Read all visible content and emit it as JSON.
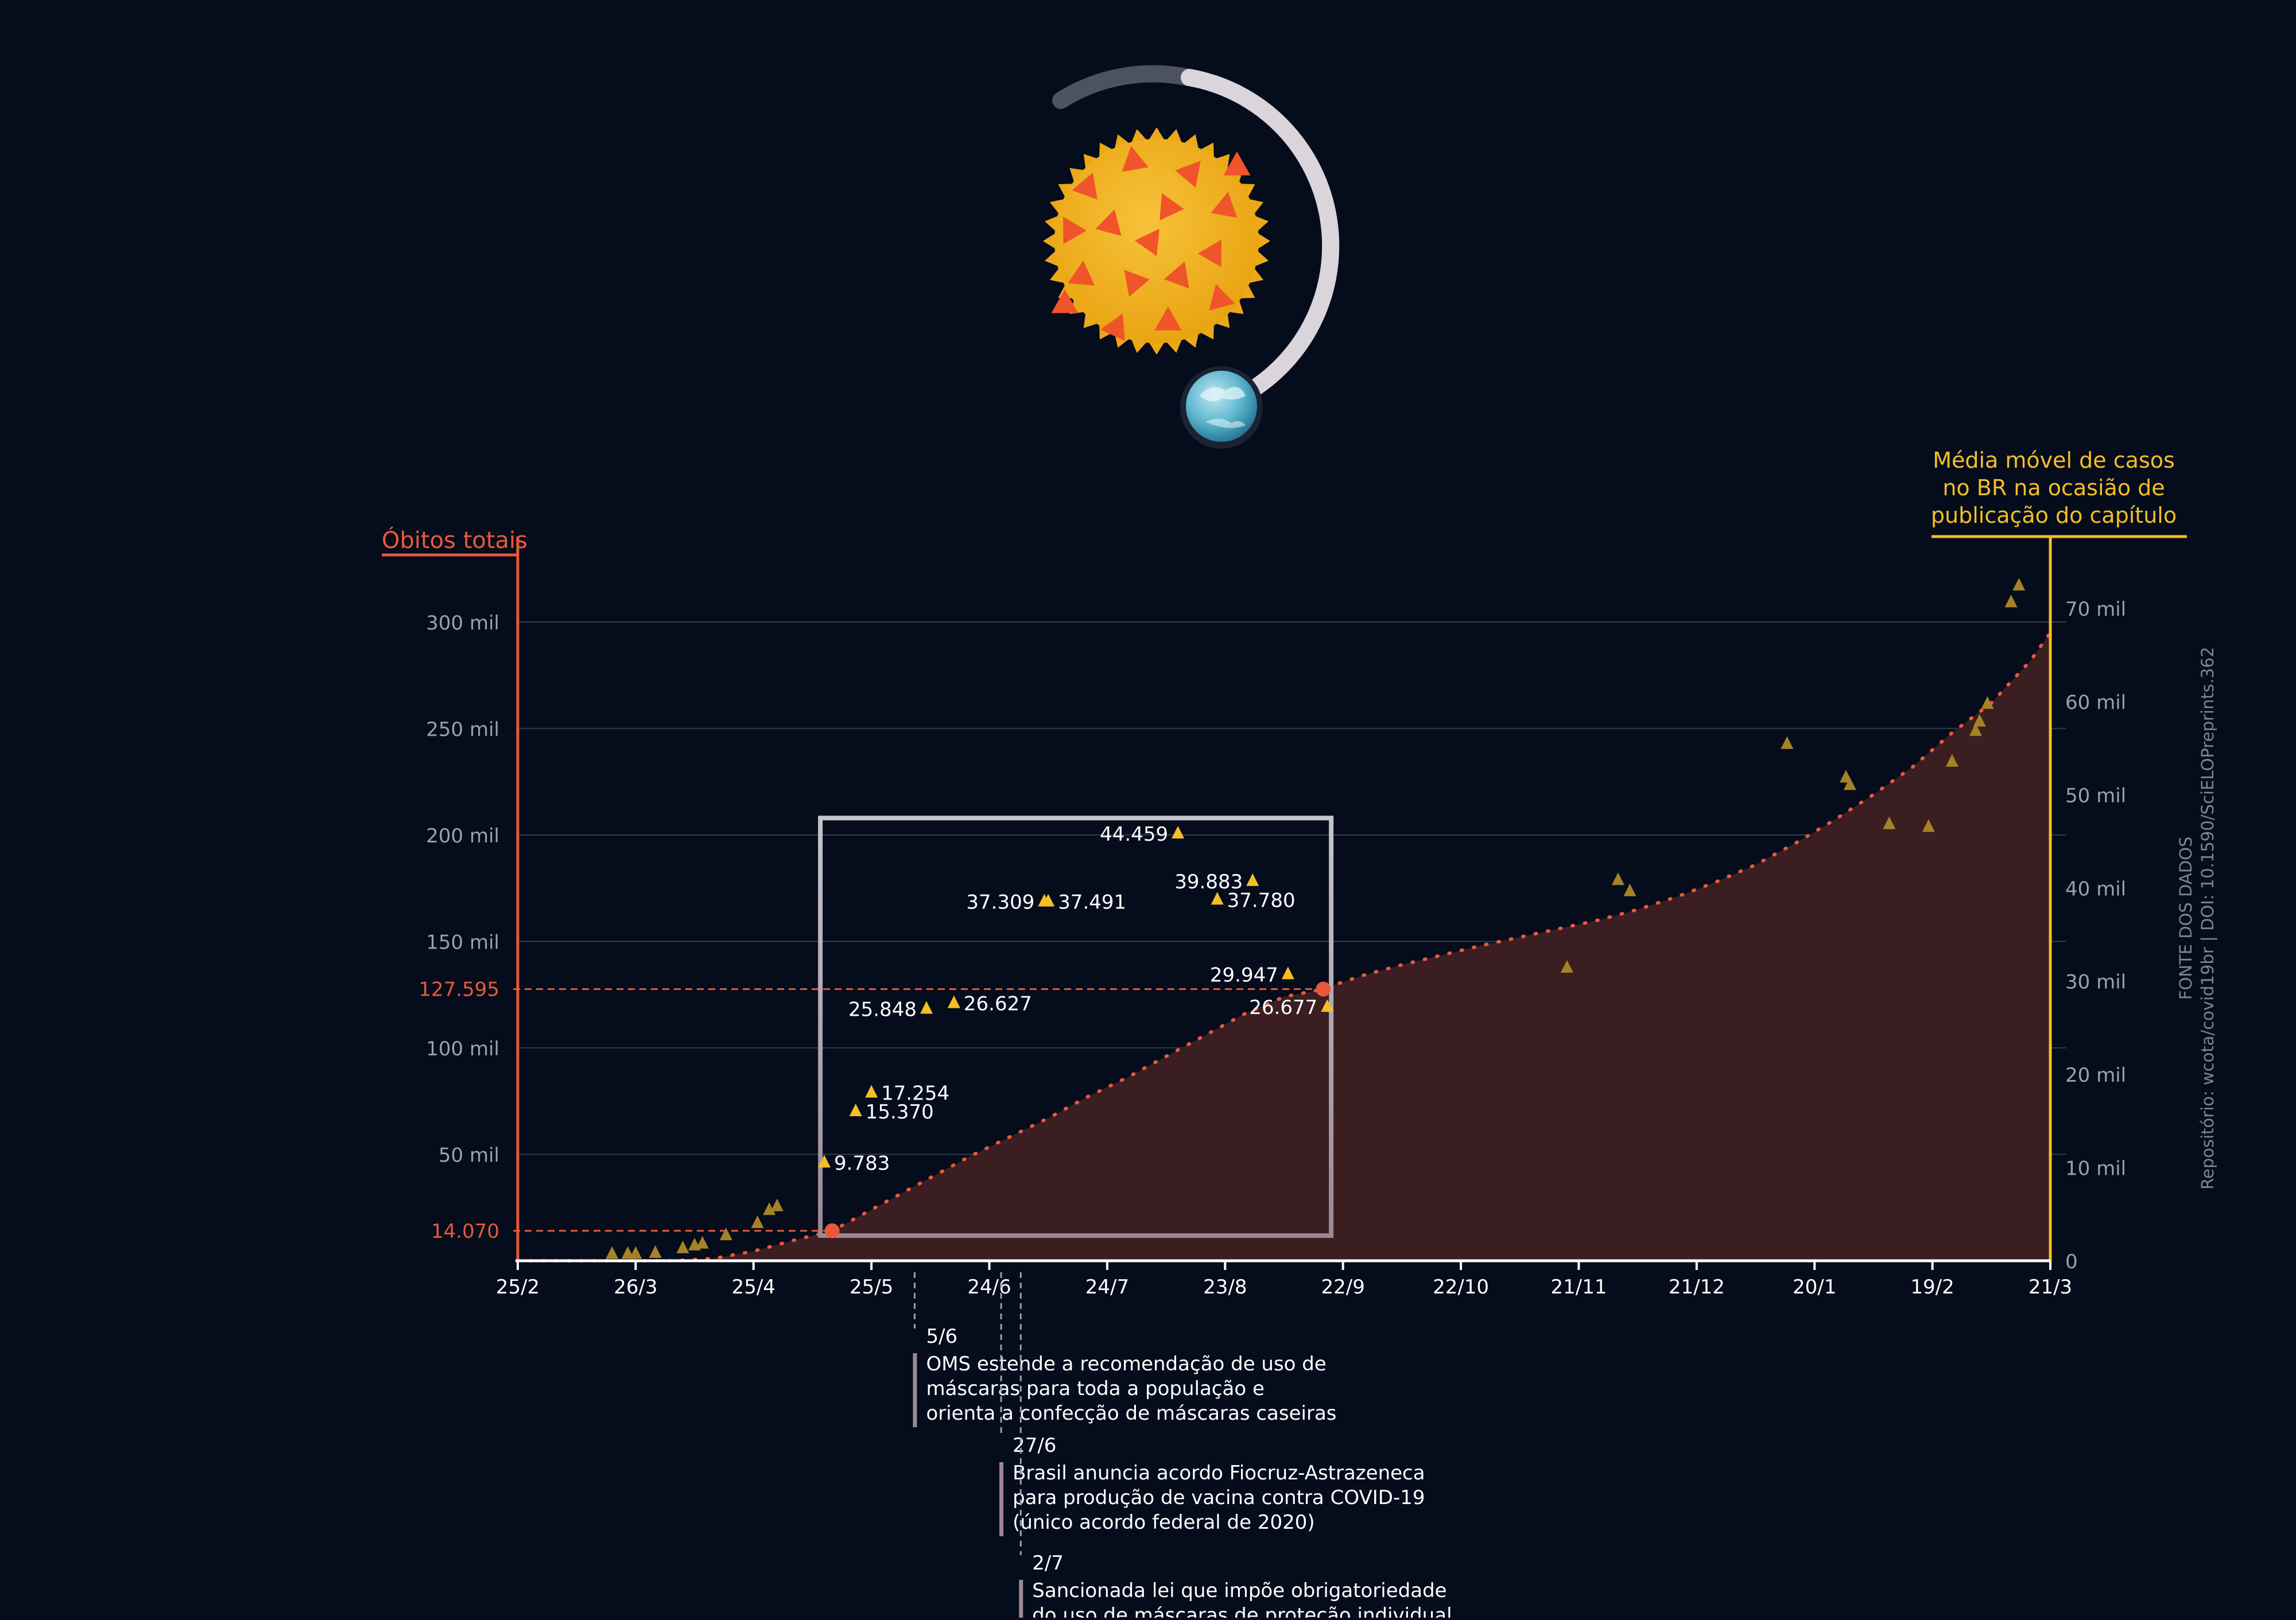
{
  "colors": {
    "background": "#050c1c",
    "deaths_axis": "#e8593b",
    "cases_axis": "#f3bf25",
    "area_fill": "#3a1e22",
    "tick_text": "#9aa0ae",
    "label_text": "#ffffff",
    "grid": "#333a4a",
    "note_bar": "#9c8894"
  },
  "chart_data": {
    "type": "area",
    "left_axis_title": "Óbitos totais",
    "right_axis_title_lines": [
      "Média móvel de casos",
      "no BR na ocasião de",
      "publicação do capítulo"
    ],
    "left_axis": {
      "ylim": [
        0,
        300000
      ],
      "ticks": [
        50000,
        100000,
        150000,
        200000,
        250000,
        300000
      ],
      "tick_labels": [
        "50 mil",
        "100 mil",
        "150 mil",
        "200 mil",
        "250 mil",
        "300 mil"
      ]
    },
    "right_axis": {
      "ylim": [
        0,
        70000
      ],
      "ticks": [
        0,
        10000,
        20000,
        30000,
        40000,
        50000,
        60000,
        70000
      ],
      "tick_labels": [
        "0",
        "10 mil",
        "20 mil",
        "30 mil",
        "40 mil",
        "50 mil",
        "60 mil",
        "70 mil"
      ]
    },
    "x_ticks": [
      "25/2",
      "26/3",
      "25/4",
      "25/5",
      "24/6",
      "24/7",
      "23/8",
      "22/9",
      "22/10",
      "21/11",
      "21/12",
      "20/1",
      "19/2",
      "21/3"
    ],
    "deaths_series": {
      "name": "Óbitos totais",
      "x_days": [
        0,
        20,
        30,
        40,
        50,
        60,
        70,
        80,
        88,
        95,
        105,
        115,
        125,
        135,
        145,
        155,
        165,
        175,
        185,
        195,
        205,
        210,
        215,
        225,
        235,
        245,
        255,
        265,
        275,
        285,
        295,
        305,
        315,
        325,
        335,
        345,
        355,
        365,
        375,
        385,
        390
      ],
      "y": [
        0,
        0,
        0,
        50,
        1100,
        4500,
        9500,
        14070,
        22000,
        29000,
        39000,
        49000,
        58000,
        67000,
        77000,
        86000,
        96000,
        106000,
        116000,
        124000,
        127595,
        131000,
        134000,
        139000,
        143500,
        148000,
        152000,
        156000,
        160000,
        165000,
        171000,
        178000,
        186000,
        196000,
        207000,
        219000,
        232000,
        248000,
        262000,
        282000,
        295000
      ]
    },
    "highlighted_points": [
      {
        "label": "14.070",
        "x_day": 80,
        "value": 14070
      },
      {
        "label": "127.595",
        "x_day": 205,
        "value": 127595
      }
    ],
    "box": {
      "x_days": [
        77,
        207
      ],
      "cases_range": [
        2700,
        47500
      ]
    },
    "case_markers": [
      {
        "x_day": 78,
        "value": 10500,
        "label": "9.783",
        "side": "right"
      },
      {
        "x_day": 86,
        "value": 16000,
        "label": "15.370",
        "side": "right"
      },
      {
        "x_day": 90,
        "value": 18000,
        "label": "17.254",
        "side": "right"
      },
      {
        "x_day": 104,
        "value": 27000,
        "label": "25.848",
        "side": "left"
      },
      {
        "x_day": 111,
        "value": 27600,
        "label": "26.627",
        "side": "right"
      },
      {
        "x_day": 134,
        "value": 38500,
        "label": "37.309",
        "side": "left"
      },
      {
        "x_day": 135,
        "value": 38500,
        "label": "37.491",
        "side": "right"
      },
      {
        "x_day": 168,
        "value": 45800,
        "label": "44.459",
        "side": "left"
      },
      {
        "x_day": 178,
        "value": 38700,
        "label": "37.780",
        "side": "right"
      },
      {
        "x_day": 187,
        "value": 40700,
        "label": "39.883",
        "side": "left"
      },
      {
        "x_day": 196,
        "value": 30700,
        "label": "29.947",
        "side": "left"
      },
      {
        "x_day": 206,
        "value": 27200,
        "label": "26.677",
        "side": "left"
      }
    ],
    "faded_case_markers": [
      {
        "x_day": 24,
        "value": 700
      },
      {
        "x_day": 28,
        "value": 700
      },
      {
        "x_day": 30,
        "value": 700
      },
      {
        "x_day": 35,
        "value": 800
      },
      {
        "x_day": 42,
        "value": 1300
      },
      {
        "x_day": 45,
        "value": 1600
      },
      {
        "x_day": 47,
        "value": 1800
      },
      {
        "x_day": 53,
        "value": 2700
      },
      {
        "x_day": 61,
        "value": 4000
      },
      {
        "x_day": 64,
        "value": 5400
      },
      {
        "x_day": 66,
        "value": 5800
      },
      {
        "x_day": 267,
        "value": 31400
      },
      {
        "x_day": 280,
        "value": 40800
      },
      {
        "x_day": 283,
        "value": 39600
      },
      {
        "x_day": 323,
        "value": 55400
      },
      {
        "x_day": 338,
        "value": 51800
      },
      {
        "x_day": 339,
        "value": 51000
      },
      {
        "x_day": 349,
        "value": 46800
      },
      {
        "x_day": 359,
        "value": 46500
      },
      {
        "x_day": 365,
        "value": 53500
      },
      {
        "x_day": 371,
        "value": 56800
      },
      {
        "x_day": 372,
        "value": 57800
      },
      {
        "x_day": 374,
        "value": 59700
      },
      {
        "x_day": 380,
        "value": 70600
      },
      {
        "x_day": 382,
        "value": 72400
      }
    ],
    "source_lines": [
      "FONTE DOS DADOS",
      "Repositório: wcota/covid19br | DOI: 10.1590/SciELOPreprints.362"
    ],
    "annotations": [
      {
        "x_day": 101,
        "date": "5/6",
        "lines": [
          "OMS estende a recomendação de uso de",
          "máscaras para toda a população e",
          "orienta a confecção de máscaras caseiras"
        ]
      },
      {
        "x_day": 123,
        "date": "27/6",
        "lines": [
          "Brasil anuncia acordo Fiocruz-Astrazeneca",
          "para produção de vacina contra COVID-19",
          "(único acordo federal de 2020)"
        ]
      },
      {
        "x_day": 128,
        "date": "2/7",
        "lines": [
          "Sancionada lei que impõe obrigatoriedade",
          "do uso de máscaras de proteção individual"
        ]
      }
    ]
  }
}
